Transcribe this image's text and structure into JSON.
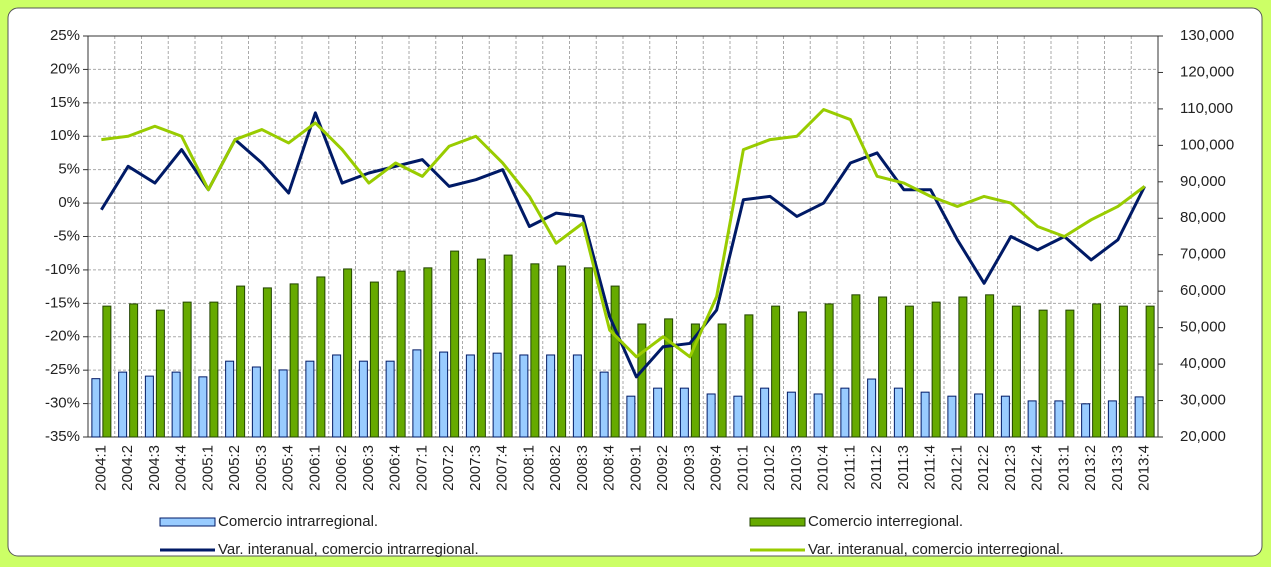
{
  "chart_data": {
    "type": "bar-line",
    "categories": [
      "2004:1",
      "2004:2",
      "2004:3",
      "2004:4",
      "2005:1",
      "2005:2",
      "2005:3",
      "2005:4",
      "2006:1",
      "2006:2",
      "2006:3",
      "2006:4",
      "2007:1",
      "2007:2",
      "2007:3",
      "2007:4",
      "2008:1",
      "2008:2",
      "2008:3",
      "2008:4",
      "2009:1",
      "2009:2",
      "2009:3",
      "2009:4",
      "2010:1",
      "2010:2",
      "2010:3",
      "2010:4",
      "2011:1",
      "2011:2",
      "2011:3",
      "2011:4",
      "2012:1",
      "2012:2",
      "2012:3",
      "2012:4",
      "2013:1",
      "2013:2",
      "2013:3",
      "2013:4"
    ],
    "series": [
      {
        "name": "Comercio intrarregional.",
        "kind": "bar",
        "axis": "y2",
        "color": "#99ccff",
        "values": [
          36000,
          37800,
          36700,
          37800,
          36500,
          40800,
          39200,
          38400,
          40800,
          42500,
          40800,
          40800,
          43900,
          43300,
          42500,
          43000,
          42500,
          42500,
          42500,
          37800,
          31200,
          33400,
          33400,
          31800,
          31200,
          33400,
          32300,
          31800,
          33400,
          35900,
          33400,
          32300,
          31200,
          31800,
          31200,
          29900,
          29900,
          29100,
          29900,
          31000
        ]
      },
      {
        "name": "Comercio interregional.",
        "kind": "bar",
        "axis": "y2",
        "color": "#66aa00",
        "values": [
          55900,
          56500,
          54800,
          57000,
          57000,
          61400,
          60900,
          62000,
          63900,
          66100,
          62500,
          65500,
          66400,
          71000,
          68800,
          69900,
          67500,
          66900,
          66400,
          61400,
          51000,
          52400,
          51000,
          51000,
          53500,
          55900,
          54300,
          56500,
          59000,
          58400,
          55900,
          57000,
          58400,
          59000,
          55900,
          54800,
          54800,
          56500,
          55900,
          55900
        ]
      },
      {
        "name": "Var. interanual, comercio intrarregional.",
        "kind": "line",
        "axis": "y",
        "color": "#001a66",
        "values": [
          -1,
          5.5,
          3,
          8,
          2,
          9.5,
          6,
          1.5,
          13.5,
          3,
          4.5,
          5.5,
          6.5,
          2.5,
          3.5,
          5,
          -3.5,
          -1.5,
          -2,
          -17,
          -26,
          -21.5,
          -21,
          -16,
          0.5,
          1,
          -2,
          0,
          6,
          7.5,
          2,
          2,
          -5.5,
          -12,
          -5,
          -7,
          -5,
          -8.5,
          -5.5,
          2.5
        ]
      },
      {
        "name": "Var. interanual, comercio interregional.",
        "kind": "line",
        "axis": "y",
        "color": "#99cc00",
        "values": [
          9.5,
          10,
          11.5,
          10,
          2,
          9.5,
          11,
          9,
          12,
          8,
          3,
          6,
          4,
          8.5,
          10,
          6,
          1,
          -6,
          -3,
          -19,
          -23,
          -20,
          -23,
          -14,
          8,
          9.5,
          10,
          14,
          12.5,
          4,
          3,
          1,
          -0.5,
          1,
          0,
          -3.5,
          -5,
          -2.5,
          -0.5,
          2.5
        ]
      }
    ],
    "ylim": [
      -35,
      25
    ],
    "yticks": [
      {
        "value": -35,
        "label": "-35%"
      },
      {
        "value": -30,
        "label": "-30%"
      },
      {
        "value": -25,
        "label": "-25%"
      },
      {
        "value": -20,
        "label": "-20%"
      },
      {
        "value": -15,
        "label": "-15%"
      },
      {
        "value": -10,
        "label": "-10%"
      },
      {
        "value": -5,
        "label": "-5%"
      },
      {
        "value": 0,
        "label": "0%"
      },
      {
        "value": 5,
        "label": "5%"
      },
      {
        "value": 10,
        "label": "10%"
      },
      {
        "value": 15,
        "label": "15%"
      },
      {
        "value": 20,
        "label": "20%"
      },
      {
        "value": 25,
        "label": "25%"
      }
    ],
    "y2lim": [
      20000,
      130000
    ],
    "y2ticks": [
      {
        "value": 20000,
        "label": "20,000"
      },
      {
        "value": 30000,
        "label": "30,000"
      },
      {
        "value": 40000,
        "label": "40,000"
      },
      {
        "value": 50000,
        "label": "50,000"
      },
      {
        "value": 60000,
        "label": "60,000"
      },
      {
        "value": 70000,
        "label": "70,000"
      },
      {
        "value": 80000,
        "label": "80,000"
      },
      {
        "value": 90000,
        "label": "90,000"
      },
      {
        "value": 100000,
        "label": "100,000"
      },
      {
        "value": 110000,
        "label": "110,000"
      },
      {
        "value": 120000,
        "label": "120,000"
      },
      {
        "value": 130000,
        "label": "130,000"
      }
    ],
    "grid": true
  }
}
